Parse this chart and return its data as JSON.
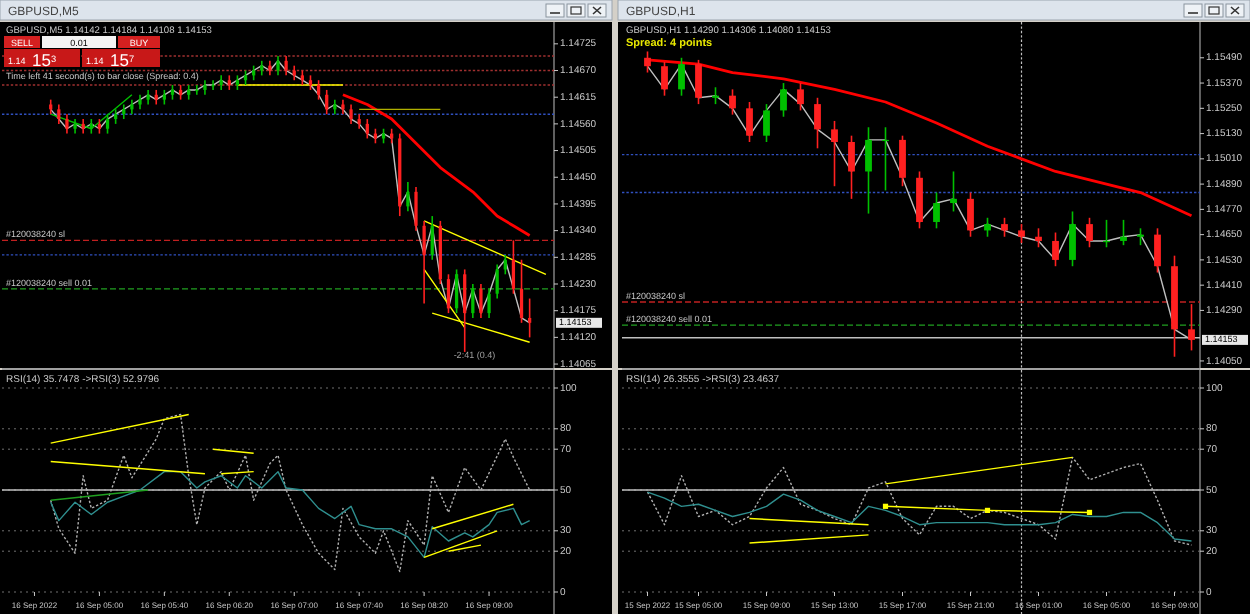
{
  "chart_data": [
    {
      "type": "candlestick",
      "title": "GBPUSD,M5 1.14142 1.14184 1.14108 1.14153",
      "tick_labels": "y",
      "x": [
        "2022-09-16T04:30",
        "2022-09-16T04:35",
        "2022-09-16T04:40",
        "2022-09-16T04:45",
        "2022-09-16T04:50",
        "2022-09-16T04:55",
        "2022-09-16T05:00",
        "2022-09-16T05:05",
        "2022-09-16T05:10",
        "2022-09-16T05:15",
        "2022-09-16T05:20",
        "2022-09-16T05:25",
        "2022-09-16T05:30",
        "2022-09-16T05:35",
        "2022-09-16T05:40",
        "2022-09-16T05:45",
        "2022-09-16T05:50",
        "2022-09-16T05:55",
        "2022-09-16T06:00",
        "2022-09-16T06:05",
        "2022-09-16T06:10",
        "2022-09-16T06:15",
        "2022-09-16T06:20",
        "2022-09-16T06:25",
        "2022-09-16T06:30",
        "2022-09-16T06:35",
        "2022-09-16T06:40",
        "2022-09-16T06:45",
        "2022-09-16T06:50",
        "2022-09-16T06:55",
        "2022-09-16T07:00",
        "2022-09-16T07:05",
        "2022-09-16T07:10",
        "2022-09-16T07:15",
        "2022-09-16T07:20",
        "2022-09-16T07:25",
        "2022-09-16T07:30",
        "2022-09-16T07:35",
        "2022-09-16T07:40",
        "2022-09-16T07:45",
        "2022-09-16T07:50",
        "2022-09-16T07:55",
        "2022-09-16T08:00",
        "2022-09-16T08:05",
        "2022-09-16T08:10",
        "2022-09-16T08:15",
        "2022-09-16T08:20",
        "2022-09-16T08:25",
        "2022-09-16T08:30",
        "2022-09-16T08:35",
        "2022-09-16T08:40",
        "2022-09-16T08:45",
        "2022-09-16T08:50",
        "2022-09-16T08:55",
        "2022-09-16T09:00",
        "2022-09-16T09:05",
        "2022-09-16T09:10",
        "2022-09-16T09:15",
        "2022-09-16T09:20",
        "2022-09-16T09:25"
      ],
      "ohlc": [
        [
          1.146,
          1.1461,
          1.1458,
          1.1459
        ],
        [
          1.1459,
          1.146,
          1.1456,
          1.1457
        ],
        [
          1.1457,
          1.1458,
          1.1454,
          1.1455
        ],
        [
          1.1455,
          1.1457,
          1.1454,
          1.1456
        ],
        [
          1.1456,
          1.1457,
          1.1454,
          1.1455
        ],
        [
          1.1455,
          1.1457,
          1.1454,
          1.1456
        ],
        [
          1.1456,
          1.1457,
          1.1454,
          1.1455
        ],
        [
          1.1455,
          1.1458,
          1.1454,
          1.1457
        ],
        [
          1.1457,
          1.1459,
          1.1456,
          1.1458
        ],
        [
          1.1458,
          1.146,
          1.1457,
          1.1459
        ],
        [
          1.1459,
          1.1461,
          1.1458,
          1.146
        ],
        [
          1.146,
          1.1462,
          1.1459,
          1.1461
        ],
        [
          1.1461,
          1.1463,
          1.146,
          1.1462
        ],
        [
          1.1462,
          1.1463,
          1.146,
          1.1461
        ],
        [
          1.1461,
          1.1463,
          1.146,
          1.1462
        ],
        [
          1.1462,
          1.1464,
          1.1461,
          1.1463
        ],
        [
          1.1463,
          1.1464,
          1.1461,
          1.1462
        ],
        [
          1.1462,
          1.1464,
          1.1461,
          1.1463
        ],
        [
          1.1463,
          1.1464,
          1.1462,
          1.1463
        ],
        [
          1.1463,
          1.1465,
          1.1462,
          1.1464
        ],
        [
          1.1464,
          1.1465,
          1.1463,
          1.1464
        ],
        [
          1.1464,
          1.1466,
          1.1463,
          1.1465
        ],
        [
          1.1465,
          1.1466,
          1.1463,
          1.1464
        ],
        [
          1.1464,
          1.1466,
          1.1463,
          1.1465
        ],
        [
          1.1465,
          1.1467,
          1.1464,
          1.1466
        ],
        [
          1.1466,
          1.1468,
          1.1465,
          1.1467
        ],
        [
          1.1467,
          1.1469,
          1.1466,
          1.1468
        ],
        [
          1.1468,
          1.1469,
          1.1466,
          1.1467
        ],
        [
          1.1467,
          1.147,
          1.1466,
          1.1469
        ],
        [
          1.1469,
          1.147,
          1.1466,
          1.1467
        ],
        [
          1.1467,
          1.1468,
          1.1465,
          1.1466
        ],
        [
          1.1466,
          1.1467,
          1.1464,
          1.1465
        ],
        [
          1.1465,
          1.1466,
          1.1463,
          1.1464
        ],
        [
          1.1464,
          1.1465,
          1.1461,
          1.1462
        ],
        [
          1.1462,
          1.1463,
          1.1458,
          1.1459
        ],
        [
          1.1459,
          1.1461,
          1.1458,
          1.146
        ],
        [
          1.146,
          1.1461,
          1.1458,
          1.1459
        ],
        [
          1.1459,
          1.146,
          1.1456,
          1.1457
        ],
        [
          1.1457,
          1.1458,
          1.1455,
          1.1456
        ],
        [
          1.1456,
          1.1457,
          1.1453,
          1.1454
        ],
        [
          1.1454,
          1.1455,
          1.1452,
          1.1453
        ],
        [
          1.1453,
          1.1455,
          1.1452,
          1.1454
        ],
        [
          1.1454,
          1.1455,
          1.1452,
          1.1453
        ],
        [
          1.1453,
          1.1454,
          1.1437,
          1.1439
        ],
        [
          1.1439,
          1.1444,
          1.1438,
          1.1442
        ],
        [
          1.1442,
          1.1443,
          1.1434,
          1.1435
        ],
        [
          1.1435,
          1.1436,
          1.1419,
          1.1429
        ],
        [
          1.1429,
          1.1437,
          1.1428,
          1.1435
        ],
        [
          1.1435,
          1.1436,
          1.1423,
          1.1424
        ],
        [
          1.1424,
          1.1425,
          1.1417,
          1.1418
        ],
        [
          1.1418,
          1.1426,
          1.1417,
          1.1425
        ],
        [
          1.1425,
          1.1426,
          1.1409,
          1.1417
        ],
        [
          1.1417,
          1.1423,
          1.1416,
          1.1422
        ],
        [
          1.1422,
          1.1423,
          1.1416,
          1.1417
        ],
        [
          1.1417,
          1.1422,
          1.1416,
          1.1421
        ],
        [
          1.1421,
          1.1427,
          1.142,
          1.1426
        ],
        [
          1.1426,
          1.1429,
          1.1425,
          1.1428
        ],
        [
          1.1428,
          1.1432,
          1.1421,
          1.1422
        ],
        [
          1.1422,
          1.1428,
          1.1415,
          1.1416
        ],
        [
          1.1416,
          1.142,
          1.1412,
          1.1415
        ]
      ],
      "series": [
        {
          "type": "line",
          "color": "#c0c0c0",
          "values": [
            1.1459,
            1.1457,
            1.1455,
            1.1456,
            1.1455,
            1.1456,
            1.1455,
            1.1457,
            1.1458,
            1.1459,
            1.146,
            1.1461,
            1.1462,
            1.1461,
            1.1462,
            1.1463,
            1.1462,
            1.1463,
            1.1463,
            1.1464,
            1.1464,
            1.1465,
            1.1464,
            1.1465,
            1.1466,
            1.1467,
            1.1468,
            1.1467,
            1.1469,
            1.1467,
            1.1466,
            1.1465,
            1.1464,
            1.1462,
            1.1459,
            1.146,
            1.1459,
            1.1457,
            1.1456,
            1.1454,
            1.1453,
            1.1454,
            1.1453,
            1.1439,
            1.1442,
            1.1435,
            1.1429,
            1.1435,
            1.1424,
            1.1418,
            1.1425,
            1.1417,
            1.1422,
            1.1417,
            1.1421,
            1.1426,
            1.1428,
            1.1422,
            1.1416,
            1.1415
          ]
        },
        {
          "type": "line",
          "color": "#ff0000",
          "x": [
            "2022-09-16T07:30",
            "2022-09-16T07:45",
            "2022-09-16T08:00",
            "2022-09-16T08:15",
            "2022-09-16T08:30",
            "2022-09-16T08:50",
            "2022-09-16T09:05",
            "2022-09-16T09:15",
            "2022-09-16T09:25"
          ],
          "values": [
            1.1462,
            1.146,
            1.1457,
            1.1452,
            1.1447,
            1.1442,
            1.1437,
            1.1435,
            1.1433
          ]
        },
        {
          "type": "line",
          "color": "#00c000",
          "x": [
            "2022-09-16T04:30",
            "2022-09-16T04:55",
            "2022-09-16T05:20"
          ],
          "values": [
            1.1458,
            1.1455,
            1.1462
          ]
        },
        {
          "type": "line",
          "color": "#ffff00",
          "x": [
            "2022-09-16T06:25",
            "2022-09-16T07:30"
          ],
          "values": [
            1.1464,
            1.1464
          ]
        },
        {
          "type": "line",
          "color": "#b0b000",
          "x": [
            "2022-09-16T07:40",
            "2022-09-16T08:30"
          ],
          "values": [
            1.1459,
            1.1459
          ]
        },
        {
          "type": "line",
          "color": "#ffff00",
          "x": [
            "2022-09-16T08:20",
            "2022-09-16T09:35"
          ],
          "values": [
            1.1436,
            1.1425
          ]
        },
        {
          "type": "line",
          "color": "#ffff00",
          "x": [
            "2022-09-16T08:20",
            "2022-09-16T08:45"
          ],
          "values": [
            1.1426,
            1.1414
          ]
        },
        {
          "type": "line",
          "color": "#ffff00",
          "x": [
            "2022-09-16T08:25",
            "2022-09-16T09:25"
          ],
          "values": [
            1.1417,
            1.1411
          ]
        }
      ],
      "xlim": [
        "2022-09-16T04:00",
        "2022-09-16T09:40"
      ],
      "ylim": [
        1.14061,
        1.1477
      ],
      "yticks": [
        {
          "value": 1.14725,
          "label": "1.14725"
        },
        {
          "value": 1.1467,
          "label": "1.14670"
        },
        {
          "value": 1.14615,
          "label": "1.14615"
        },
        {
          "value": 1.1456,
          "label": "1.14560"
        },
        {
          "value": 1.14505,
          "label": "1.14505"
        },
        {
          "value": 1.1445,
          "label": "1.14450"
        },
        {
          "value": 1.14395,
          "label": "1.14395"
        },
        {
          "value": 1.1434,
          "label": "1.14340"
        },
        {
          "value": 1.14285,
          "label": "1.14285"
        },
        {
          "value": 1.1423,
          "label": "1.14230"
        },
        {
          "value": 1.14175,
          "label": "1.14175"
        },
        {
          "value": 1.1412,
          "label": "1.14120"
        },
        {
          "value": 1.14065,
          "label": "1.14065"
        }
      ],
      "ref_lines": [
        {
          "axis": "y",
          "value": 1.147,
          "color": "#a03030",
          "line_style": "dotted"
        },
        {
          "axis": "y",
          "value": 1.1467,
          "color": "#a03030",
          "line_style": "dotted"
        },
        {
          "axis": "y",
          "value": 1.1464,
          "color": "#a03030",
          "line_style": "dotted"
        },
        {
          "axis": "y",
          "value": 1.1458,
          "color": "#3050c0",
          "line_style": "dotted"
        },
        {
          "axis": "y",
          "value": 1.1429,
          "color": "#3050c0",
          "line_style": "dotted"
        },
        {
          "axis": "y",
          "value": 1.1432,
          "label": "#120038240 sl",
          "color": "#c02020",
          "line_style": "dashed"
        },
        {
          "axis": "y",
          "value": 1.1422,
          "label": "#120038240 sell 0.01",
          "color": "#20a020",
          "line_style": "dashed"
        }
      ],
      "annotations": [
        "GBPUSD,M5",
        "SELL",
        "0.01",
        "BUY",
        "1.14",
        "15$^{3}$",
        "1.14",
        "15$^{7}$",
        "Time left 41 second(s) to bar close (Spread: 0.4)",
        "-2:41 (0.4)",
        "1.14153"
      ]
    },
    {
      "type": "line",
      "title": "RSI(14) 35.7478 ->RSI(3) 52.9796",
      "grid": "y",
      "series": [
        {
          "color": "#b0b0b0",
          "line_style": "dotted",
          "x": [
            "2022-09-16T04:30",
            "2022-09-16T04:35",
            "2022-09-16T04:45",
            "2022-09-16T04:50",
            "2022-09-16T04:55",
            "2022-09-16T05:05",
            "2022-09-16T05:15",
            "2022-09-16T05:20",
            "2022-09-16T05:35",
            "2022-09-16T05:40",
            "2022-09-16T05:50",
            "2022-09-16T05:55",
            "2022-09-16T06:00",
            "2022-09-16T06:05",
            "2022-09-16T06:15",
            "2022-09-16T06:20",
            "2022-09-16T06:30",
            "2022-09-16T06:35",
            "2022-09-16T06:45",
            "2022-09-16T06:50",
            "2022-09-16T06:55",
            "2022-09-16T07:05",
            "2022-09-16T07:15",
            "2022-09-16T07:25",
            "2022-09-16T07:30",
            "2022-09-16T07:40",
            "2022-09-16T07:50",
            "2022-09-16T07:55",
            "2022-09-16T08:05",
            "2022-09-16T08:10",
            "2022-09-16T08:20",
            "2022-09-16T08:25",
            "2022-09-16T08:35",
            "2022-09-16T08:45",
            "2022-09-16T08:55",
            "2022-09-16T09:10",
            "2022-09-16T09:15",
            "2022-09-16T09:25"
          ],
          "values": [
            45,
            31,
            19,
            57,
            41,
            45,
            67,
            56,
            75,
            85,
            87,
            57,
            33,
            51,
            59,
            50,
            67,
            45,
            63,
            67,
            50,
            33,
            19,
            11,
            41,
            27,
            19,
            30,
            10,
            35,
            23,
            57,
            39,
            61,
            50,
            75,
            66,
            50
          ]
        },
        {
          "color": "#2f8f8f",
          "line_style": "solid",
          "x": [
            "2022-09-16T04:30",
            "2022-09-16T04:35",
            "2022-09-16T04:45",
            "2022-09-16T04:55",
            "2022-09-16T05:05",
            "2022-09-16T05:15",
            "2022-09-16T05:25",
            "2022-09-16T05:40",
            "2022-09-16T05:50",
            "2022-09-16T06:00",
            "2022-09-16T06:05",
            "2022-09-16T06:15",
            "2022-09-16T06:25",
            "2022-09-16T06:30",
            "2022-09-16T06:40",
            "2022-09-16T06:50",
            "2022-09-16T06:55",
            "2022-09-16T07:05",
            "2022-09-16T07:15",
            "2022-09-16T07:25",
            "2022-09-16T07:35",
            "2022-09-16T07:40",
            "2022-09-16T07:50",
            "2022-09-16T08:00",
            "2022-09-16T08:10",
            "2022-09-16T08:20",
            "2022-09-16T08:25",
            "2022-09-16T08:35",
            "2022-09-16T08:45",
            "2022-09-16T08:50",
            "2022-09-16T09:00",
            "2022-09-16T09:05",
            "2022-09-16T09:15",
            "2022-09-16T09:20",
            "2022-09-16T09:25"
          ],
          "values": [
            44,
            35,
            44,
            38,
            44,
            47,
            50,
            59,
            59,
            51,
            54,
            57,
            51,
            57,
            51,
            59,
            51,
            50,
            41,
            36,
            42,
            33,
            31,
            31,
            27,
            17,
            32,
            25,
            29,
            27,
            33,
            39,
            41,
            33,
            35
          ]
        },
        {
          "color": "#ffff00",
          "x": [
            "2022-09-16T04:30",
            "2022-09-16T05:55"
          ],
          "values": [
            73,
            87
          ]
        },
        {
          "color": "#ffff00",
          "x": [
            "2022-09-16T04:30",
            "2022-09-16T06:05"
          ],
          "values": [
            64,
            58
          ]
        },
        {
          "color": "#ffff00",
          "x": [
            "2022-09-16T06:10",
            "2022-09-16T06:35"
          ],
          "values": [
            70,
            68
          ]
        },
        {
          "color": "#ffff00",
          "x": [
            "2022-09-16T06:15",
            "2022-09-16T06:35"
          ],
          "values": [
            58,
            59
          ]
        },
        {
          "color": "#20a020",
          "x": [
            "2022-09-16T04:30",
            "2022-09-16T05:30"
          ],
          "values": [
            45,
            50
          ]
        },
        {
          "color": "#ffff00",
          "x": [
            "2022-09-16T08:25",
            "2022-09-16T09:15"
          ],
          "values": [
            31,
            43
          ]
        },
        {
          "color": "#ffff00",
          "x": [
            "2022-09-16T08:20",
            "2022-09-16T09:05"
          ],
          "values": [
            17,
            30
          ]
        },
        {
          "color": "#ffff00",
          "x": [
            "2022-09-16T08:35",
            "2022-09-16T08:55"
          ],
          "values": [
            20,
            23
          ]
        }
      ],
      "xlim": [
        "2022-09-16T04:00",
        "2022-09-16T09:40"
      ],
      "xticks": [
        {
          "value": "2022-09-16T04:20",
          "label": "16 Sep 2022"
        },
        {
          "value": "2022-09-16T05:00",
          "label": "16 Sep 05:00"
        },
        {
          "value": "2022-09-16T05:40",
          "label": "16 Sep 05:40"
        },
        {
          "value": "2022-09-16T06:20",
          "label": "16 Sep 06:20"
        },
        {
          "value": "2022-09-16T07:00",
          "label": "16 Sep 07:00"
        },
        {
          "value": "2022-09-16T07:40",
          "label": "16 Sep 07:40"
        },
        {
          "value": "2022-09-16T08:20",
          "label": "16 Sep 08:20"
        },
        {
          "value": "2022-09-16T09:00",
          "label": "16 Sep 09:00"
        }
      ],
      "ylim": [
        0,
        100
      ],
      "yticks": [
        0,
        20,
        30,
        50,
        70,
        80,
        100
      ],
      "ref_lines": [
        {
          "axis": "y",
          "value": 50,
          "color": "#c0c0c0",
          "line_style": "solid"
        }
      ]
    },
    {
      "type": "candlestick",
      "title": "GBPUSD,H1 1.14290 1.14306 1.14080 1.14153",
      "tick_labels": "y",
      "x": [
        "2022-09-15T02:00",
        "2022-09-15T03:00",
        "2022-09-15T04:00",
        "2022-09-15T05:00",
        "2022-09-15T06:00",
        "2022-09-15T07:00",
        "2022-09-15T08:00",
        "2022-09-15T09:00",
        "2022-09-15T10:00",
        "2022-09-15T11:00",
        "2022-09-15T12:00",
        "2022-09-15T13:00",
        "2022-09-15T14:00",
        "2022-09-15T15:00",
        "2022-09-15T16:00",
        "2022-09-15T17:00",
        "2022-09-15T18:00",
        "2022-09-15T19:00",
        "2022-09-15T20:00",
        "2022-09-15T21:00",
        "2022-09-15T22:00",
        "2022-09-15T23:00",
        "2022-09-16T00:00",
        "2022-09-16T01:00",
        "2022-09-16T02:00",
        "2022-09-16T03:00",
        "2022-09-16T04:00",
        "2022-09-16T05:00",
        "2022-09-16T06:00",
        "2022-09-16T07:00",
        "2022-09-16T08:00",
        "2022-09-16T09:00",
        "2022-09-16T10:00"
      ],
      "ohlc": [
        [
          1.1549,
          1.1552,
          1.1542,
          1.1545
        ],
        [
          1.1545,
          1.1547,
          1.1531,
          1.1534
        ],
        [
          1.1534,
          1.1549,
          1.1531,
          1.1546
        ],
        [
          1.1546,
          1.1548,
          1.1527,
          1.153
        ],
        [
          1.153,
          1.1535,
          1.1527,
          1.1531
        ],
        [
          1.1531,
          1.1534,
          1.1522,
          1.1525
        ],
        [
          1.1525,
          1.1528,
          1.1509,
          1.1512
        ],
        [
          1.1512,
          1.1527,
          1.1509,
          1.1524
        ],
        [
          1.1524,
          1.1537,
          1.1521,
          1.1534
        ],
        [
          1.1534,
          1.1537,
          1.1524,
          1.1527
        ],
        [
          1.1527,
          1.153,
          1.1506,
          1.1515
        ],
        [
          1.1515,
          1.1519,
          1.1488,
          1.1509
        ],
        [
          1.1509,
          1.1512,
          1.1482,
          1.1495
        ],
        [
          1.1495,
          1.1516,
          1.1475,
          1.151
        ],
        [
          1.151,
          1.1516,
          1.1486,
          1.151
        ],
        [
          1.151,
          1.1512,
          1.1488,
          1.1492
        ],
        [
          1.1492,
          1.1495,
          1.1468,
          1.1471
        ],
        [
          1.1471,
          1.1485,
          1.1468,
          1.148
        ],
        [
          1.148,
          1.1495,
          1.1476,
          1.1482
        ],
        [
          1.1482,
          1.1485,
          1.1464,
          1.1467
        ],
        [
          1.1467,
          1.1473,
          1.1464,
          1.147
        ],
        [
          1.147,
          1.1473,
          1.1464,
          1.1467
        ],
        [
          1.1467,
          1.147,
          1.1461,
          1.1464
        ],
        [
          1.1464,
          1.1468,
          1.1459,
          1.1462
        ],
        [
          1.1462,
          1.1466,
          1.145,
          1.1453
        ],
        [
          1.1453,
          1.1476,
          1.145,
          1.147
        ],
        [
          1.147,
          1.1473,
          1.1459,
          1.1462
        ],
        [
          1.1462,
          1.1472,
          1.1459,
          1.1462
        ],
        [
          1.1462,
          1.1472,
          1.146,
          1.1464
        ],
        [
          1.1464,
          1.1468,
          1.146,
          1.1465
        ],
        [
          1.1465,
          1.1468,
          1.1447,
          1.145
        ],
        [
          1.145,
          1.1455,
          1.1407,
          1.142
        ],
        [
          1.142,
          1.1432,
          1.141,
          1.1415
        ]
      ],
      "series": [
        {
          "type": "line",
          "color": "#c0c0c0",
          "values": [
            1.1545,
            1.1534,
            1.1546,
            1.153,
            1.1531,
            1.1525,
            1.1512,
            1.1524,
            1.1534,
            1.1527,
            1.1515,
            1.1509,
            1.1495,
            1.151,
            1.151,
            1.1492,
            1.1471,
            1.148,
            1.1482,
            1.1467,
            1.147,
            1.1467,
            1.1464,
            1.1462,
            1.1453,
            1.147,
            1.1462,
            1.1462,
            1.1464,
            1.1465,
            1.145,
            1.142,
            1.1415
          ]
        },
        {
          "type": "line",
          "color": "#ff0000",
          "x": [
            "2022-09-15T02:00",
            "2022-09-15T05:00",
            "2022-09-15T07:00",
            "2022-09-15T10:00",
            "2022-09-15T13:00",
            "2022-09-15T16:00",
            "2022-09-15T19:00",
            "2022-09-15T22:00",
            "2022-09-16T00:00",
            "2022-09-16T02:00",
            "2022-09-16T05:00",
            "2022-09-16T07:00",
            "2022-09-16T10:00"
          ],
          "values": [
            1.1548,
            1.1546,
            1.1542,
            1.1539,
            1.1534,
            1.1528,
            1.1518,
            1.1507,
            1.1501,
            1.1495,
            1.1489,
            1.1485,
            1.1474
          ]
        }
      ],
      "xlim": [
        "2022-09-15T00:30",
        "2022-09-16T10:30"
      ],
      "ylim": [
        1.14026,
        1.1566
      ],
      "yticks": [
        {
          "value": 1.1549,
          "label": "1.15490"
        },
        {
          "value": 1.1537,
          "label": "1.15370"
        },
        {
          "value": 1.1525,
          "label": "1.15250"
        },
        {
          "value": 1.1513,
          "label": "1.15130"
        },
        {
          "value": 1.1501,
          "label": "1.15010"
        },
        {
          "value": 1.1489,
          "label": "1.14890"
        },
        {
          "value": 1.1477,
          "label": "1.14770"
        },
        {
          "value": 1.1465,
          "label": "1.14650"
        },
        {
          "value": 1.1453,
          "label": "1.14530"
        },
        {
          "value": 1.1441,
          "label": "1.14410"
        },
        {
          "value": 1.1429,
          "label": "1.14290"
        },
        {
          "value": 1.1405,
          "label": "1.14050"
        }
      ],
      "ref_lines": [
        {
          "axis": "y",
          "value": 1.1503,
          "color": "#3050c0",
          "line_style": "dotted"
        },
        {
          "axis": "y",
          "value": 1.1485,
          "color": "#3050c0",
          "line_style": "dotted"
        },
        {
          "axis": "y",
          "value": 1.1433,
          "label": "#120038240 sl",
          "color": "#c02020",
          "line_style": "dashed"
        },
        {
          "axis": "y",
          "value": 1.1422,
          "label": "#120038240 sell 0.01",
          "color": "#20a020",
          "line_style": "dashed"
        },
        {
          "axis": "y",
          "value": 1.1416,
          "color": "#c0c0c0",
          "line_style": "solid"
        },
        {
          "axis": "x",
          "value": "2022-09-16T00:00",
          "color": "#c0c0c0",
          "line_style": "dotted"
        }
      ],
      "annotations": [
        "GBPUSD,H1",
        "Spread: 4 points",
        "1.14153"
      ]
    },
    {
      "type": "line",
      "title": "RSI(14) 26.3555 ->RSI(3) 23.4637",
      "grid": "y",
      "x": [
        "2022-09-15T02:00",
        "2022-09-15T03:00",
        "2022-09-15T04:00",
        "2022-09-15T05:00",
        "2022-09-15T06:00",
        "2022-09-15T07:00",
        "2022-09-15T08:00",
        "2022-09-15T09:00",
        "2022-09-15T10:00",
        "2022-09-15T11:00",
        "2022-09-15T12:00",
        "2022-09-15T13:00",
        "2022-09-15T14:00",
        "2022-09-15T15:00",
        "2022-09-15T16:00",
        "2022-09-15T17:00",
        "2022-09-15T18:00",
        "2022-09-15T19:00",
        "2022-09-15T20:00",
        "2022-09-15T21:00",
        "2022-09-15T22:00",
        "2022-09-15T23:00",
        "2022-09-16T00:00",
        "2022-09-16T01:00",
        "2022-09-16T02:00",
        "2022-09-16T03:00",
        "2022-09-16T04:00",
        "2022-09-16T05:00",
        "2022-09-16T06:00",
        "2022-09-16T07:00",
        "2022-09-16T08:00",
        "2022-09-16T09:00",
        "2022-09-16T10:00"
      ],
      "series": [
        {
          "color": "#b0b0b0",
          "line_style": "dotted",
          "values": [
            49,
            33,
            57,
            37,
            40,
            33,
            37,
            51,
            61,
            43,
            40,
            36,
            33,
            51,
            54,
            36,
            28,
            42,
            42,
            36,
            40,
            39,
            36,
            33,
            26,
            66,
            55,
            58,
            61,
            63,
            45,
            25,
            23
          ]
        },
        {
          "color": "#2f8f8f",
          "line_style": "solid",
          "values": [
            49,
            46,
            42,
            43,
            40,
            37,
            39,
            42,
            48,
            45,
            40,
            37,
            34,
            42,
            40,
            37,
            33,
            34,
            34,
            34,
            34,
            33,
            33,
            33,
            34,
            38,
            37,
            37,
            39,
            39,
            34,
            26,
            25
          ]
        },
        {
          "color": "#ffff00",
          "x": [
            "2022-09-15T08:00",
            "2022-09-15T15:00"
          ],
          "values": [
            36,
            33
          ]
        },
        {
          "color": "#ffff00",
          "x": [
            "2022-09-15T08:00",
            "2022-09-15T15:00"
          ],
          "values": [
            24,
            28
          ]
        },
        {
          "color": "#ffff00",
          "x": [
            "2022-09-15T16:00",
            "2022-09-16T03:00"
          ],
          "values": [
            53,
            66
          ]
        },
        {
          "color": "#ffff00",
          "marker": "square",
          "x": [
            "2022-09-15T16:00",
            "2022-09-15T22:00",
            "2022-09-16T04:00"
          ],
          "values": [
            42,
            40,
            39
          ]
        }
      ],
      "xlim": [
        "2022-09-15T00:30",
        "2022-09-16T10:30"
      ],
      "xticks": [
        {
          "value": "2022-09-15T02:00",
          "label": "15 Sep 2022"
        },
        {
          "value": "2022-09-15T05:00",
          "label": "15 Sep 05:00"
        },
        {
          "value": "2022-09-15T09:00",
          "label": "15 Sep 09:00"
        },
        {
          "value": "2022-09-15T13:00",
          "label": "15 Sep 13:00"
        },
        {
          "value": "2022-09-15T17:00",
          "label": "15 Sep 17:00"
        },
        {
          "value": "2022-09-15T21:00",
          "label": "15 Sep 21:00"
        },
        {
          "value": "2022-09-16T01:00",
          "label": "16 Sep 01:00"
        },
        {
          "value": "2022-09-16T05:00",
          "label": "16 Sep 05:00"
        },
        {
          "value": "2022-09-16T09:00",
          "label": "16 Sep 09:00"
        }
      ],
      "ylim": [
        0,
        100
      ],
      "yticks": [
        0,
        20,
        30,
        50,
        70,
        80,
        100
      ],
      "ref_lines": [
        {
          "axis": "y",
          "value": 50,
          "color": "#c0c0c0",
          "line_style": "solid"
        },
        {
          "axis": "x",
          "value": "2022-09-16T00:00",
          "color": "#c0c0c0",
          "line_style": "dotted"
        }
      ]
    }
  ]
}
